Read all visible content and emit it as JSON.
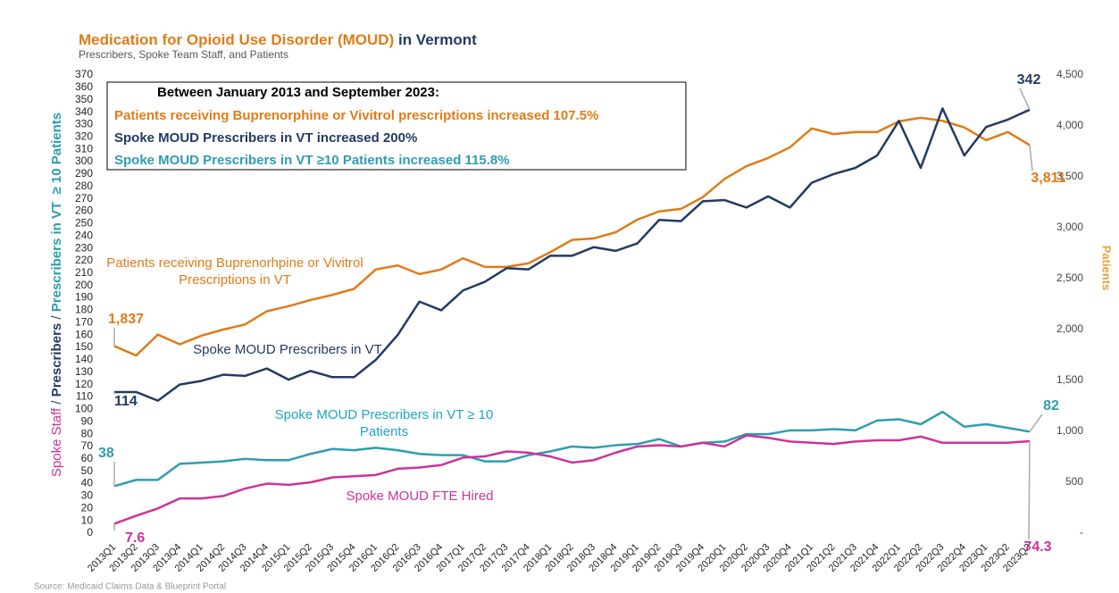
{
  "chart_data": {
    "type": "line",
    "title_parts": [
      "Medication for Opioid Use Disorder (MOUD)",
      " in Vermont"
    ],
    "subtitle": "Prescribers, Spoke Team Staff, and Patients",
    "source": "Source: Medicaid Claims Data & Blueprint Portal",
    "ylabel_parts": [
      "Spoke Staff",
      " / ",
      "Prescribers",
      " / ",
      "Prescribers in VT  ≥ 10 Patients"
    ],
    "y2label": "Patients",
    "annotation_box": [
      "Between January 2013 and September 2023:",
      "Patients receiving Buprenorphine or Vivitrol prescriptions increased 107.5%",
      "Spoke MOUD Prescribers in VT increased 200%",
      "Spoke MOUD Prescribers in VT ≥10 Patients increased 115.8%"
    ],
    "categories": [
      "2013Q1",
      "2013Q2",
      "2013Q3",
      "2013Q4",
      "2014Q1",
      "2014Q2",
      "2014Q3",
      "2014Q4",
      "2015Q1",
      "2015Q2",
      "2015Q3",
      "2015Q4",
      "2016Q1",
      "2016Q2",
      "2016Q3",
      "2016Q4",
      "2017Q1",
      "2017Q2",
      "2017Q3",
      "2017Q4",
      "2018Q1",
      "2018Q2",
      "2018Q3",
      "2018Q4",
      "2019Q1",
      "2019Q2",
      "2019Q3",
      "2019Q4",
      "2020Q1",
      "2020Q2",
      "2020Q3",
      "2020Q4",
      "2021Q1",
      "2021Q2",
      "2021Q3",
      "2021Q4",
      "2022Q1",
      "2022Q2",
      "2022Q3",
      "2022Q4",
      "2023Q1",
      "2023Q2",
      "2023Q3"
    ],
    "ylim": [
      0,
      370
    ],
    "yticks": [
      0,
      10,
      20,
      30,
      40,
      50,
      60,
      70,
      80,
      90,
      100,
      110,
      120,
      130,
      140,
      150,
      160,
      170,
      180,
      190,
      200,
      210,
      220,
      230,
      240,
      250,
      260,
      270,
      280,
      290,
      300,
      310,
      320,
      330,
      340,
      350,
      360,
      370
    ],
    "y2lim": [
      0,
      4500
    ],
    "y2ticks": [
      {
        "value": 0,
        "label": "-"
      },
      500,
      {
        "value": 1000,
        "label": "1,000"
      },
      {
        "value": 1500,
        "label": "1,500"
      },
      {
        "value": 2000,
        "label": "2,000"
      },
      {
        "value": 2500,
        "label": "2,500"
      },
      {
        "value": 3000,
        "label": "3,000"
      },
      {
        "value": 3500,
        "label": "3,500"
      },
      {
        "value": 4000,
        "label": "4,000"
      },
      {
        "value": 4500,
        "label": "4,500"
      }
    ],
    "series": [
      {
        "name": "Patients receiving Buprenorhpine or Vivitrol Prescriptions in VT",
        "color": "#e07b17",
        "axis": "y2",
        "values": [
          1837,
          1745,
          1950,
          1855,
          1940,
          2000,
          2050,
          2180,
          2230,
          2290,
          2340,
          2400,
          2590,
          2630,
          2545,
          2590,
          2700,
          2615,
          2615,
          2650,
          2760,
          2880,
          2895,
          2955,
          3080,
          3160,
          3185,
          3300,
          3480,
          3605,
          3685,
          3790,
          3975,
          3920,
          3940,
          3940,
          4045,
          4080,
          4050,
          3985,
          3860,
          3940,
          3811
        ],
        "value_labels": [
          "1,837",
          null,
          null,
          null,
          null,
          null,
          null,
          null,
          null,
          null,
          null,
          null,
          null,
          null,
          null,
          null,
          null,
          null,
          null,
          null,
          null,
          null,
          null,
          null,
          null,
          null,
          null,
          null,
          null,
          null,
          null,
          null,
          null,
          null,
          null,
          null,
          null,
          null,
          null,
          null,
          null,
          null,
          "3,811"
        ]
      },
      {
        "name": "Spoke MOUD Prescribers in VT",
        "color": "#243a63",
        "values": [
          114,
          114,
          107,
          120,
          123,
          128,
          127,
          133,
          124,
          131,
          126,
          126,
          140,
          160,
          187,
          180,
          196,
          203,
          214,
          213,
          224,
          224,
          231,
          228,
          234,
          253,
          252,
          268,
          269,
          263,
          272,
          263,
          283,
          290,
          295,
          305,
          333,
          295,
          343,
          305,
          328,
          334,
          342
        ]
      },
      {
        "name": "Spoke MOUD Prescribers in VT  ≥ 10 Patients",
        "color": "#2e9db0",
        "values": [
          38,
          43,
          43,
          56,
          57,
          58,
          60,
          59,
          59,
          64,
          68,
          67,
          69,
          67,
          64,
          63,
          63,
          58,
          58,
          63,
          66,
          70,
          69,
          71,
          72,
          76,
          70,
          73,
          74,
          80,
          80,
          83,
          83,
          84,
          83,
          91,
          92,
          88,
          98,
          86,
          88,
          85,
          82
        ]
      },
      {
        "name": "Spoke MOUD FTE Hired",
        "color": "#cc3399",
        "values": [
          7.6,
          14,
          20,
          28,
          28,
          30,
          36,
          40,
          39,
          41,
          45,
          46,
          47,
          52,
          53,
          55,
          61,
          62,
          66,
          65,
          62,
          57,
          59,
          65,
          70,
          71,
          70,
          73,
          70,
          79,
          77,
          74,
          73,
          72,
          74,
          75,
          75,
          78,
          73,
          73,
          73,
          73,
          74.3
        ]
      }
    ]
  }
}
